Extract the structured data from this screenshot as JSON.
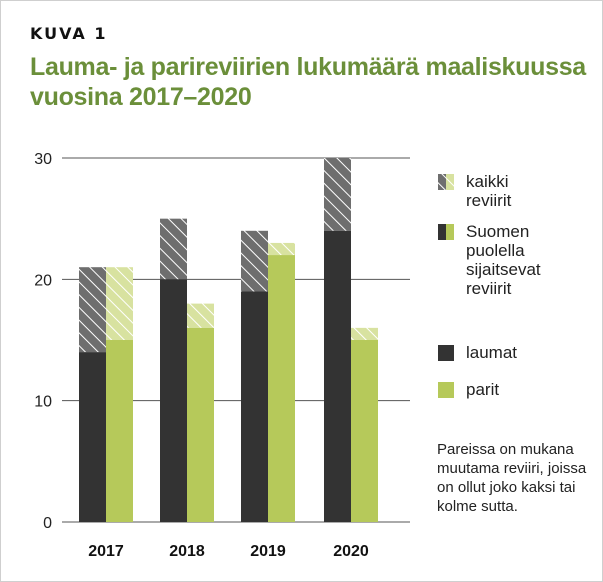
{
  "figure_label": "KUVA 1",
  "title": "Lauma- ja parireviirien lukumäärä maaliskuussa vuosina 2017–2020",
  "note": "Pareissa on mukana muutama reviiri, joissa on ollut joko kaksi tai kolme sutta.",
  "chart_data": {
    "type": "bar",
    "stacked": true,
    "categories": [
      "2017",
      "2018",
      "2019",
      "2020"
    ],
    "ylim": [
      0,
      30
    ],
    "yticks": [
      0,
      10,
      20,
      30
    ],
    "grid": true,
    "series": [
      {
        "name": "laumat",
        "finnish_side": [
          14,
          20,
          19,
          24
        ],
        "total": [
          21,
          25,
          24,
          30
        ]
      },
      {
        "name": "parit",
        "finnish_side": [
          15,
          16,
          22,
          15
        ],
        "total": [
          21,
          18,
          23,
          16
        ]
      }
    ],
    "legend": [
      {
        "label": "kaikki reviirit",
        "style": "hatched"
      },
      {
        "label": "Suomen puolella sijaitsevat reviirit",
        "style": "solid-split"
      },
      {
        "label": "laumat",
        "style": "solid-dark"
      },
      {
        "label": "parit",
        "style": "solid-green"
      }
    ],
    "legend_position": "right"
  },
  "colors": {
    "laumat": "#333333",
    "parit": "#b6c95a",
    "laumat_hatch": "#6e6e6e",
    "parit_hatch": "#d8e2a0",
    "title": "#6b8f3a",
    "grid": "#555555"
  }
}
